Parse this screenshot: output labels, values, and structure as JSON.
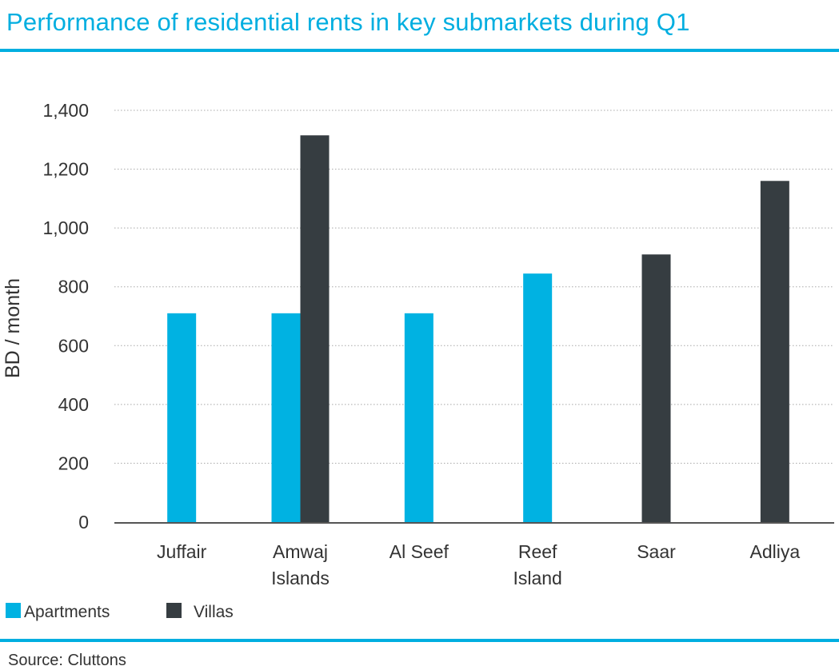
{
  "title": "Performance of residential rents in key submarkets during Q1",
  "source": "Source: Cluttons",
  "colors": {
    "accent": "#00aee0",
    "apartments": "#00b2e2",
    "villas": "#363d41"
  },
  "chart_data": {
    "type": "bar",
    "categories": [
      "Juffair",
      "Amwaj Islands",
      "Al Seef",
      "Reef Island",
      "Saar",
      "Adliya"
    ],
    "category_lines": [
      [
        "Juffair"
      ],
      [
        "Amwaj",
        "Islands"
      ],
      [
        "Al Seef"
      ],
      [
        "Reef",
        "Island"
      ],
      [
        "Saar"
      ],
      [
        "Adliya"
      ]
    ],
    "series": [
      {
        "name": "Apartments",
        "values": [
          710,
          710,
          710,
          845,
          null,
          null
        ]
      },
      {
        "name": "Villas",
        "values": [
          null,
          1315,
          null,
          null,
          910,
          1160
        ]
      }
    ],
    "title": "Performance of residential rents in key submarkets during Q1",
    "xlabel": "",
    "ylabel": "BD / month",
    "ylim": [
      0,
      1400
    ],
    "yticks": [
      0,
      200,
      400,
      600,
      800,
      1000,
      1200,
      1400
    ],
    "ytick_labels": [
      "0",
      "200",
      "400",
      "600",
      "800",
      "1,000",
      "1,200",
      "1,400"
    ],
    "grid": true,
    "legend_position": "bottom-left"
  }
}
